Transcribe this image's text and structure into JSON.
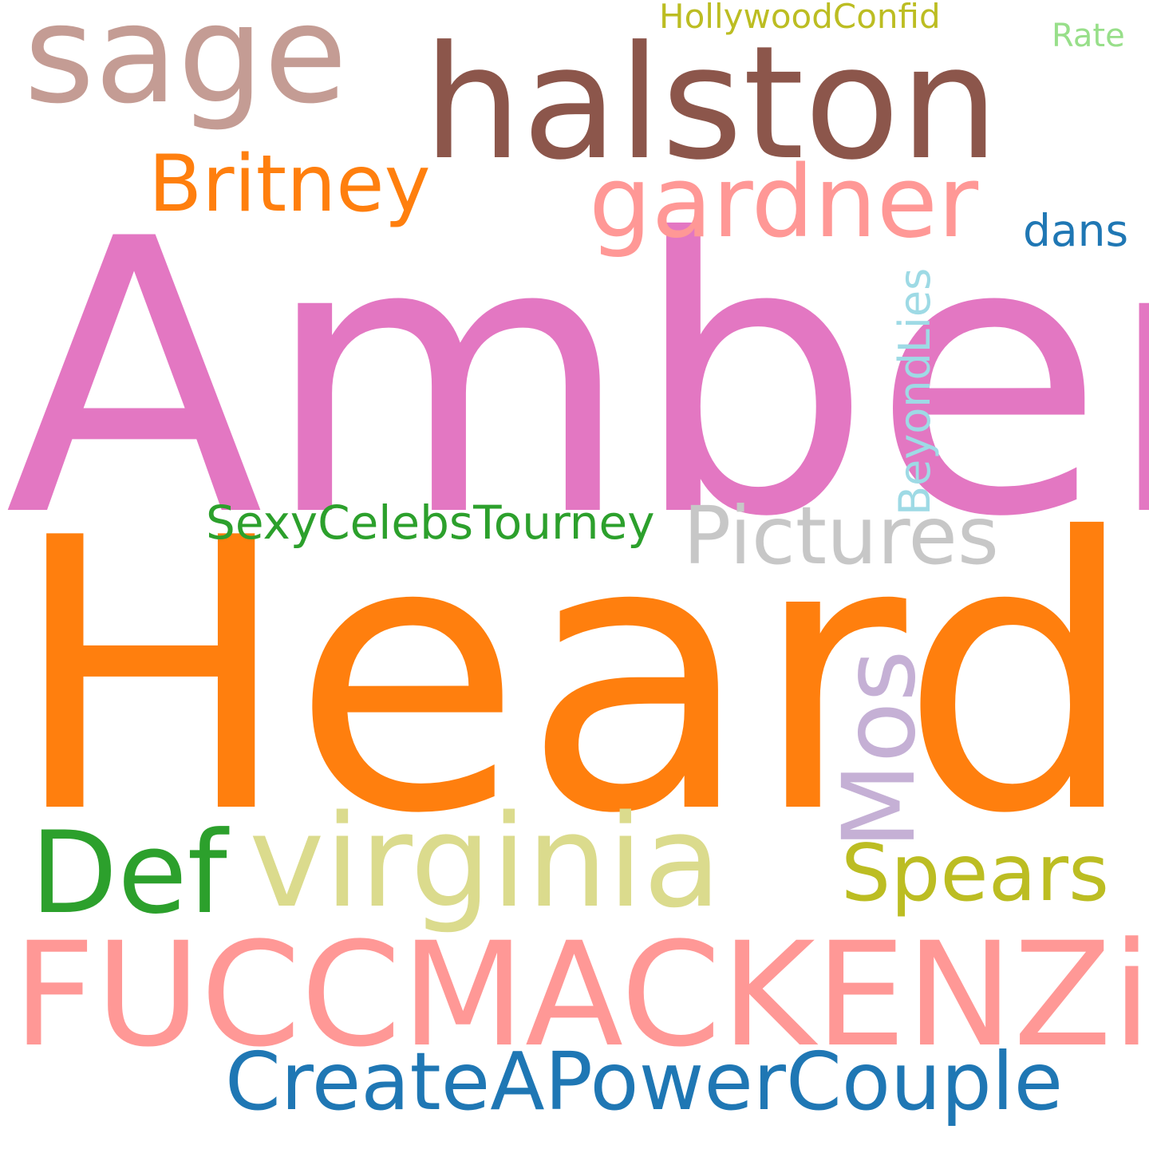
{
  "words": [
    {
      "text": "Amber",
      "color": "#e377c2"
    },
    {
      "text": "Heard",
      "color": "#ff7f0e"
    },
    {
      "text": "halston",
      "color": "#8c564b"
    },
    {
      "text": "sage",
      "color": "#c49c94"
    },
    {
      "text": "gardner",
      "color": "#ff9896"
    },
    {
      "text": "Britney",
      "color": "#ff7f0e"
    },
    {
      "text": "HollywoodConfid",
      "color": "#bcbd22"
    },
    {
      "text": "Rate",
      "color": "#98df8a"
    },
    {
      "text": "dans",
      "color": "#1f77b4"
    },
    {
      "text": "BeyondLies",
      "color": "#9edae5"
    },
    {
      "text": "Pictures",
      "color": "#c7c7c7"
    },
    {
      "text": "SexyCelebsTourney",
      "color": "#2ca02c"
    },
    {
      "text": "Mos",
      "color": "#c5b0d5"
    },
    {
      "text": "Def",
      "color": "#2ca02c"
    },
    {
      "text": "virginia",
      "color": "#dbdb8d"
    },
    {
      "text": "Spears",
      "color": "#bcbd22"
    },
    {
      "text": "FUCCMACKENZiE",
      "color": "#ff9896"
    },
    {
      "text": "CreateAPowerCouple",
      "color": "#1f77b4"
    }
  ]
}
